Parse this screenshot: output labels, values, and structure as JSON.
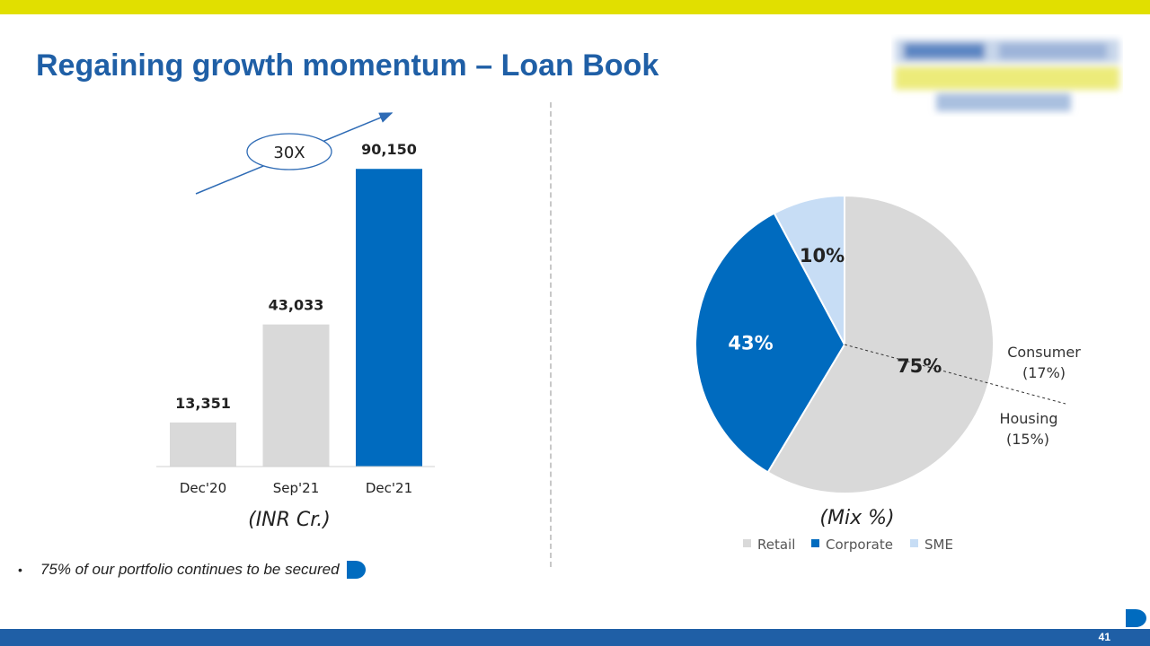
{
  "slide": {
    "title": "Regaining growth momentum – Loan Book",
    "page_number": "41",
    "bullet": "75% of our portfolio continues to be secured",
    "colors": {
      "primary_blue": "#006bbf",
      "title_blue": "#1f5fa6",
      "top_bar": "#e1df00",
      "grey": "#d9d9d9",
      "light_blue": "#c7ddf5"
    }
  },
  "chart_data": [
    {
      "type": "bar",
      "categories": [
        "Dec'20",
        "Sep'21",
        "Dec'21"
      ],
      "values": [
        13351,
        43033,
        90150
      ],
      "value_labels": [
        "13,351",
        "43,033",
        "90,150"
      ],
      "bar_colors": [
        "#d9d9d9",
        "#d9d9d9",
        "#006bbf"
      ],
      "xlabel": "(INR Cr.)",
      "annotation": "30X",
      "ylim": [
        0,
        100000
      ]
    },
    {
      "type": "pie",
      "categories": [
        "Retail",
        "Corporate",
        "SME"
      ],
      "values": [
        75,
        43,
        10
      ],
      "value_labels": [
        "75%",
        "43%",
        "10%"
      ],
      "colors": [
        "#d9d9d9",
        "#006bbf",
        "#c7ddf5"
      ],
      "xlabel": "(Mix %)",
      "legend_position": "bottom",
      "annotations": [
        {
          "label": "Consumer",
          "value": "(17%)"
        },
        {
          "label": "Housing",
          "value": "(15%)"
        }
      ]
    }
  ]
}
